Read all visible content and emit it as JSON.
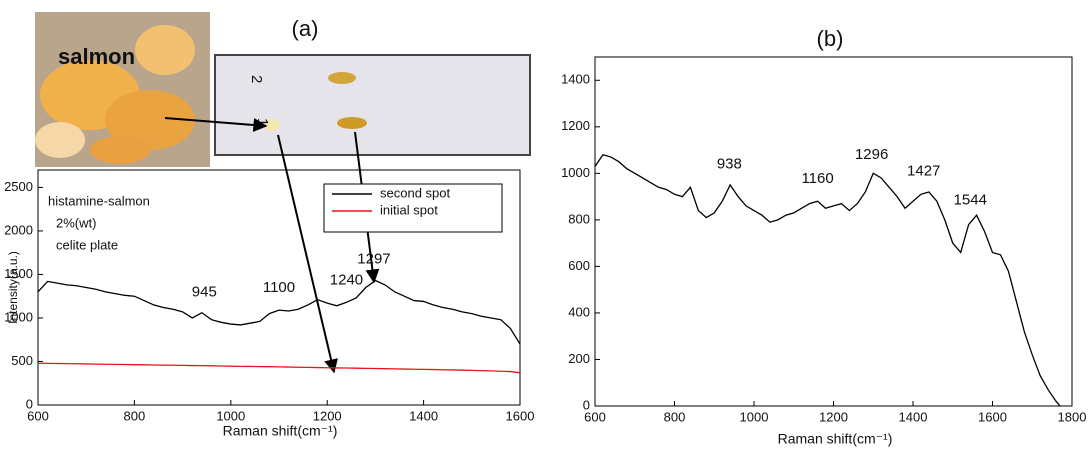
{
  "photo": {
    "label": "salmon",
    "lanes": [
      "2",
      "1"
    ]
  },
  "chart_data": [
    {
      "type": "line",
      "title": "(a)",
      "xlabel": "Raman shift(cm⁻¹)",
      "ylabel": "Intensity(a.u.)",
      "notes": [
        "histamine-salmon",
        "2%(wt)",
        "celite plate"
      ],
      "peak_labels": [
        "945",
        "1100",
        "1240",
        "1297"
      ],
      "legend": "upper right",
      "x": [
        600,
        620,
        640,
        660,
        680,
        700,
        720,
        740,
        760,
        780,
        800,
        820,
        840,
        860,
        880,
        900,
        920,
        940,
        960,
        980,
        1000,
        1020,
        1040,
        1060,
        1080,
        1100,
        1120,
        1140,
        1160,
        1180,
        1200,
        1220,
        1240,
        1260,
        1280,
        1300,
        1320,
        1340,
        1360,
        1380,
        1400,
        1420,
        1440,
        1460,
        1480,
        1500,
        1520,
        1540,
        1560,
        1580,
        1600
      ],
      "series": [
        {
          "name": "second spot",
          "color": "#000000",
          "values": [
            1300,
            1420,
            1400,
            1380,
            1370,
            1350,
            1330,
            1300,
            1280,
            1260,
            1250,
            1200,
            1150,
            1120,
            1100,
            1070,
            1000,
            1060,
            980,
            950,
            930,
            920,
            940,
            960,
            1050,
            1090,
            1080,
            1100,
            1150,
            1210,
            1170,
            1140,
            1180,
            1230,
            1350,
            1430,
            1380,
            1300,
            1250,
            1200,
            1190,
            1150,
            1120,
            1100,
            1070,
            1050,
            1020,
            1000,
            980,
            880,
            700
          ]
        },
        {
          "name": "initial spot",
          "color": "#e8161b",
          "values": [
            480,
            478,
            477,
            475,
            474,
            472,
            470,
            468,
            467,
            465,
            463,
            462,
            460,
            458,
            457,
            455,
            453,
            452,
            450,
            448,
            446,
            444,
            443,
            441,
            440,
            438,
            436,
            434,
            432,
            430,
            428,
            426,
            425,
            423,
            421,
            419,
            417,
            415,
            413,
            411,
            409,
            407,
            405,
            403,
            400,
            398,
            395,
            392,
            388,
            384,
            370
          ]
        }
      ],
      "xlim": [
        600,
        1600
      ],
      "xticks": [
        600,
        800,
        1000,
        1200,
        1400,
        1600
      ],
      "ylim": [
        0,
        2700
      ],
      "yticks": [
        0,
        500,
        1000,
        1500,
        2000,
        2500
      ]
    },
    {
      "type": "line",
      "title": "(b)",
      "xlabel": "Raman shift(cm⁻¹)",
      "peak_labels": [
        "938",
        "1160",
        "1296",
        "1427",
        "1544"
      ],
      "x": [
        600,
        620,
        640,
        660,
        680,
        700,
        720,
        740,
        760,
        780,
        800,
        820,
        840,
        860,
        880,
        900,
        920,
        940,
        960,
        980,
        1000,
        1020,
        1040,
        1060,
        1080,
        1100,
        1120,
        1140,
        1160,
        1180,
        1200,
        1220,
        1240,
        1260,
        1280,
        1300,
        1320,
        1340,
        1360,
        1380,
        1400,
        1420,
        1440,
        1460,
        1480,
        1500,
        1520,
        1540,
        1560,
        1580,
        1600,
        1620,
        1640,
        1660,
        1680,
        1700,
        1720,
        1740,
        1760,
        1770
      ],
      "series": [
        {
          "color": "#000000",
          "values": [
            1030,
            1080,
            1070,
            1050,
            1020,
            1000,
            980,
            960,
            940,
            930,
            910,
            900,
            940,
            840,
            810,
            830,
            880,
            950,
            900,
            860,
            840,
            820,
            790,
            800,
            820,
            830,
            850,
            870,
            880,
            850,
            860,
            870,
            840,
            870,
            920,
            1000,
            980,
            940,
            900,
            850,
            880,
            910,
            920,
            880,
            800,
            700,
            660,
            780,
            820,
            750,
            660,
            650,
            580,
            450,
            320,
            220,
            130,
            70,
            20,
            0
          ]
        }
      ],
      "xlim": [
        600,
        1800
      ],
      "xticks": [
        600,
        800,
        1000,
        1200,
        1400,
        1600,
        1800
      ],
      "ylim": [
        0,
        1500
      ],
      "yticks": [
        0,
        200,
        400,
        600,
        800,
        1000,
        1200,
        1400
      ]
    }
  ]
}
